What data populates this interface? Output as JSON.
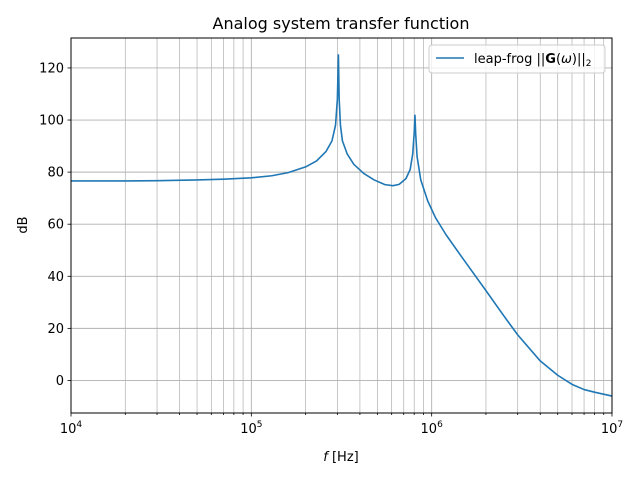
{
  "chart_data": {
    "type": "line",
    "title": "Analog system transfer function",
    "xlabel_italic": "f",
    "xlabel_unit": "[Hz]",
    "ylabel": "dB",
    "xscale": "log",
    "xlim": [
      10000,
      10000000
    ],
    "ylim": [
      -12.5,
      131.5
    ],
    "x_ticks": [
      {
        "value": 10000,
        "base": "10",
        "exp": "4"
      },
      {
        "value": 100000,
        "base": "10",
        "exp": "5"
      },
      {
        "value": 1000000,
        "base": "10",
        "exp": "6"
      },
      {
        "value": 10000000,
        "base": "10",
        "exp": "7"
      }
    ],
    "y_ticks": [
      {
        "value": 0,
        "label": "0"
      },
      {
        "value": 20,
        "label": "20"
      },
      {
        "value": 40,
        "label": "40"
      },
      {
        "value": 60,
        "label": "60"
      },
      {
        "value": 80,
        "label": "80"
      },
      {
        "value": 100,
        "label": "100"
      },
      {
        "value": 120,
        "label": "120"
      }
    ],
    "grid": true,
    "legend_position": "top-right",
    "series": [
      {
        "name": "leap-frog ||G(ω)||₂",
        "legend_prefix": "leap-frog ",
        "legend_bold": "G",
        "legend_omega": "ω",
        "legend_sub": "2",
        "color": "#1f77b4",
        "points": [
          [
            10000,
            76.6
          ],
          [
            20000,
            76.6
          ],
          [
            30000,
            76.7
          ],
          [
            50000,
            77.0
          ],
          [
            70000,
            77.3
          ],
          [
            100000,
            77.8
          ],
          [
            130000,
            78.6
          ],
          [
            160000,
            79.8
          ],
          [
            200000,
            82.0
          ],
          [
            230000,
            84.3
          ],
          [
            260000,
            88.0
          ],
          [
            280000,
            92.0
          ],
          [
            293000,
            98.0
          ],
          [
            300000,
            108.0
          ],
          [
            304000,
            125.0
          ],
          [
            307000,
            108.0
          ],
          [
            312000,
            98.0
          ],
          [
            320000,
            92.0
          ],
          [
            340000,
            87.0
          ],
          [
            370000,
            83.0
          ],
          [
            420000,
            79.5
          ],
          [
            480000,
            77.0
          ],
          [
            550000,
            75.2
          ],
          [
            610000,
            74.8
          ],
          [
            660000,
            75.3
          ],
          [
            720000,
            77.5
          ],
          [
            760000,
            81.0
          ],
          [
            785000,
            87.0
          ],
          [
            800000,
            95.0
          ],
          [
            808000,
            101.8
          ],
          [
            815000,
            95.0
          ],
          [
            830000,
            86.0
          ],
          [
            870000,
            77.0
          ],
          [
            950000,
            69.0
          ],
          [
            1050000,
            62.5
          ],
          [
            1200000,
            56.0
          ],
          [
            1500000,
            46.5
          ],
          [
            2000000,
            34.5
          ],
          [
            2500000,
            25.0
          ],
          [
            3000000,
            17.5
          ],
          [
            4000000,
            7.5
          ],
          [
            5000000,
            2.0
          ],
          [
            6000000,
            -1.5
          ],
          [
            7000000,
            -3.5
          ],
          [
            8000000,
            -4.5
          ],
          [
            10000000,
            -6.0
          ]
        ]
      }
    ]
  }
}
